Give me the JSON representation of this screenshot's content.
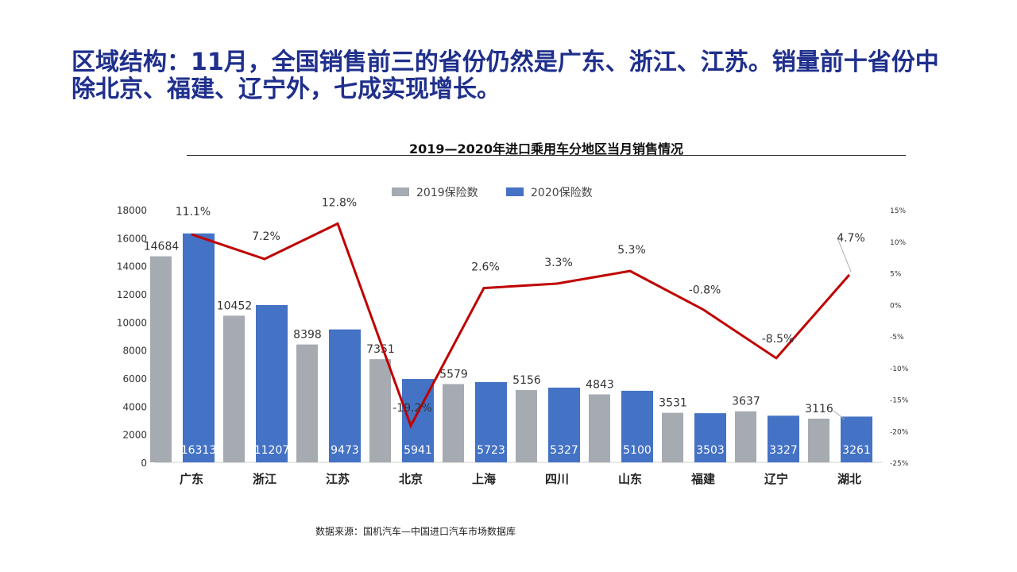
{
  "headline": "区域结构：11月，全国销售前三的省份仍然是广东、浙江、江苏。销量前十省份中除北京、福建、辽宁外，七成实现增长。",
  "source": "数据来源：国机汽车—中国进口汽车市场数据库",
  "colors": {
    "s2019": "#a6abb2",
    "s2020": "#4472c4",
    "growth": "#c00000"
  },
  "chart_data": {
    "type": "bar",
    "title": "2019—2020年进口乘用车分地区当月销售情况",
    "categories": [
      "广东",
      "浙江",
      "江苏",
      "北京",
      "上海",
      "四川",
      "山东",
      "福建",
      "辽宁",
      "湖北"
    ],
    "series": [
      {
        "name": "2019保险数",
        "values": [
          14684,
          10452,
          8398,
          7351,
          5579,
          5156,
          4843,
          3531,
          3637,
          3116
        ]
      },
      {
        "name": "2020保险数",
        "values": [
          16313,
          11207,
          9473,
          5941,
          5723,
          5327,
          5100,
          3503,
          3327,
          3261
        ]
      }
    ],
    "growth": {
      "type": "line",
      "axis": "secondary",
      "values": [
        11.1,
        7.2,
        12.8,
        -19.2,
        2.6,
        3.3,
        5.3,
        -0.8,
        -8.5,
        4.7
      ],
      "labels": [
        "11.1%",
        "7.2%",
        "12.8%",
        "-19.2%",
        "2.6%",
        "3.3%",
        "5.3%",
        "-0.8%",
        "-8.5%",
        "4.7%"
      ]
    },
    "y_left": {
      "min": 0,
      "max": 18000,
      "ticks": [
        "0",
        "2000",
        "4000",
        "6000",
        "8000",
        "10000",
        "12000",
        "14000",
        "16000",
        "18000"
      ]
    },
    "y_right": {
      "min": -25,
      "max": 15,
      "ticks": [
        "-25%",
        "-20%",
        "-15%",
        "-10%",
        "-5%",
        "0%",
        "5%",
        "10%",
        "15%"
      ]
    },
    "legend": "top"
  }
}
